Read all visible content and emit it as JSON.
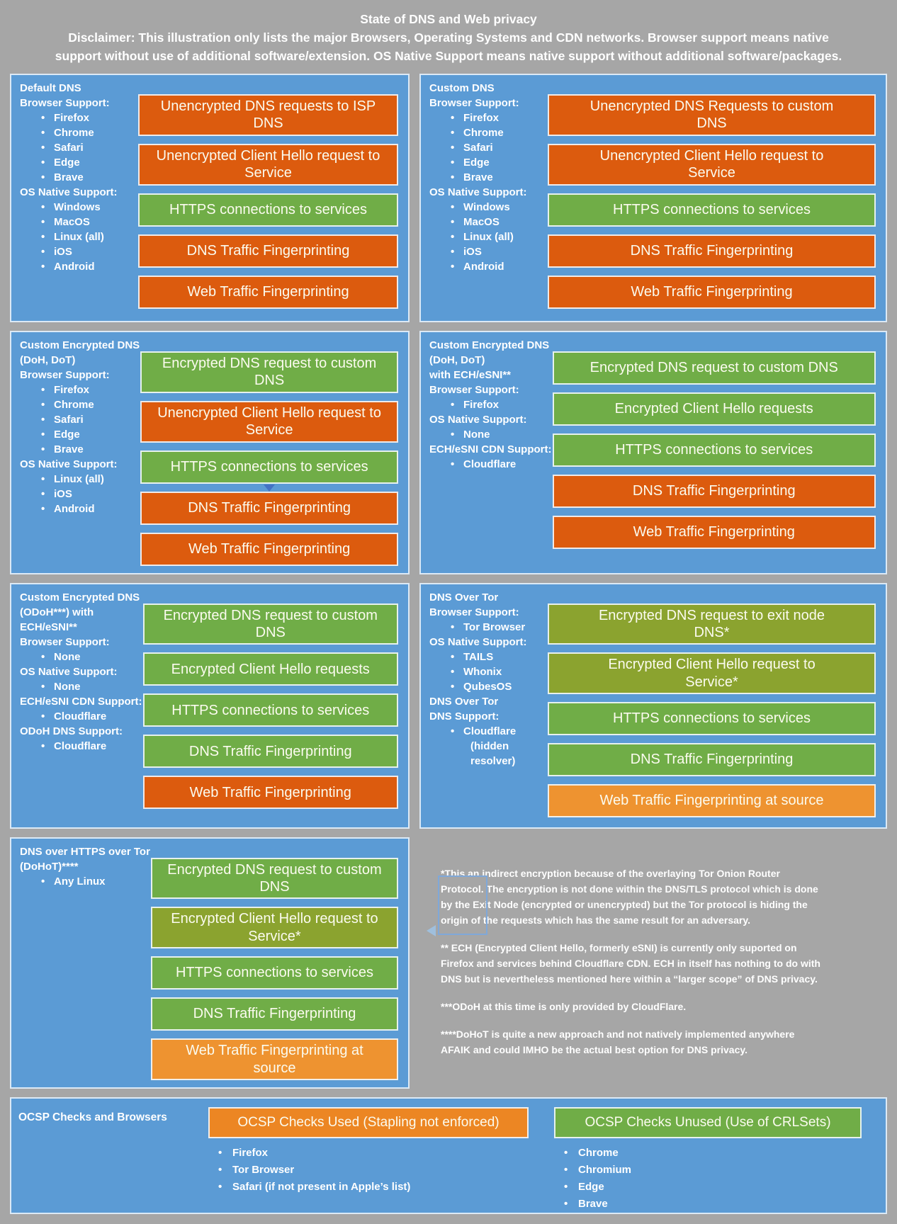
{
  "colors": {
    "gray": "#A6A6A6",
    "blue": "#5B9BD5",
    "orange": "#DC5B0E",
    "green": "#70AD47",
    "olive": "#8BA32F",
    "light_orange": "#EE9330",
    "ocsp_orange": "#EC8623",
    "arrow_blue": "#4472C4"
  },
  "header": {
    "title": "State of DNS and Web privacy",
    "disclaimer": "Disclaimer: This illustration only lists the major Browsers, Operating Systems and CDN networks. Browser support means native support without use of additional software/extension. OS Native Support means native support without additional software/packages."
  },
  "panels": [
    {
      "name": "Default DNS",
      "sidebar": [
        {
          "t": "title",
          "s": "Default DNS"
        },
        {
          "t": "head",
          "s": "Browser Support:"
        },
        {
          "t": "li",
          "s": "Firefox"
        },
        {
          "t": "li",
          "s": "Chrome"
        },
        {
          "t": "li",
          "s": "Safari"
        },
        {
          "t": "li",
          "s": "Edge"
        },
        {
          "t": "li",
          "s": "Brave"
        },
        {
          "t": "head",
          "s": "OS Native Support:"
        },
        {
          "t": "li",
          "s": "Windows"
        },
        {
          "t": "li",
          "s": "MacOS"
        },
        {
          "t": "li",
          "s": "Linux (all)"
        },
        {
          "t": "li",
          "s": "iOS"
        },
        {
          "t": "li",
          "s": "Android"
        }
      ],
      "bars": [
        {
          "label": "Unencrypted DNS requests to ISP DNS",
          "color": "orange"
        },
        {
          "label": "Unencrypted Client Hello request to\nService",
          "color": "orange"
        },
        {
          "label": "HTTPS connections to services",
          "color": "green"
        },
        {
          "label": "DNS Traffic Fingerprinting",
          "color": "orange"
        },
        {
          "label": "Web Traffic Fingerprinting",
          "color": "orange"
        }
      ]
    },
    {
      "name": "Custom DNS",
      "sidebar": [
        {
          "t": "title",
          "s": "Custom DNS"
        },
        {
          "t": "head",
          "s": "Browser Support:"
        },
        {
          "t": "li",
          "s": "Firefox"
        },
        {
          "t": "li",
          "s": "Chrome"
        },
        {
          "t": "li",
          "s": "Safari"
        },
        {
          "t": "li",
          "s": "Edge"
        },
        {
          "t": "li",
          "s": "Brave"
        },
        {
          "t": "head",
          "s": "OS Native Support:"
        },
        {
          "t": "li",
          "s": "Windows"
        },
        {
          "t": "li",
          "s": "MacOS"
        },
        {
          "t": "li",
          "s": "Linux (all)"
        },
        {
          "t": "li",
          "s": "iOS"
        },
        {
          "t": "li",
          "s": "Android"
        }
      ],
      "bars": [
        {
          "label": "Unencrypted DNS Requests to custom\nDNS",
          "color": "orange"
        },
        {
          "label": "Unencrypted Client Hello request to\nService",
          "color": "orange"
        },
        {
          "label": "HTTPS connections to services",
          "color": "green"
        },
        {
          "label": "DNS Traffic Fingerprinting",
          "color": "orange"
        },
        {
          "label": "Web Traffic Fingerprinting",
          "color": "orange"
        }
      ]
    },
    {
      "name": "Custom Encrypted DNS (DoH, DoT)",
      "sidebar": [
        {
          "t": "title",
          "s": "Custom Encrypted DNS"
        },
        {
          "t": "title",
          "s": "(DoH, DoT)"
        },
        {
          "t": "head",
          "s": "Browser Support:"
        },
        {
          "t": "li",
          "s": "Firefox"
        },
        {
          "t": "li",
          "s": "Chrome"
        },
        {
          "t": "li",
          "s": "Safari"
        },
        {
          "t": "li",
          "s": "Edge"
        },
        {
          "t": "li",
          "s": "Brave"
        },
        {
          "t": "head",
          "s": "OS Native Support:"
        },
        {
          "t": "li",
          "s": "Linux (all)"
        },
        {
          "t": "li",
          "s": "iOS"
        },
        {
          "t": "li",
          "s": "Android"
        }
      ],
      "bars": [
        {
          "label": "Encrypted DNS request to custom DNS",
          "color": "green"
        },
        {
          "label": "Unencrypted Client Hello request to\nService",
          "color": "orange"
        },
        {
          "label": "HTTPS connections to services",
          "color": "green",
          "arrow_below": true
        },
        {
          "label": "DNS Traffic Fingerprinting",
          "color": "orange"
        },
        {
          "label": "Web Traffic Fingerprinting",
          "color": "orange"
        }
      ]
    },
    {
      "name": "Custom Encrypted DNS (DoH, DoT) with ECH/eSNI**",
      "sidebar": [
        {
          "t": "title",
          "s": "Custom Encrypted DNS"
        },
        {
          "t": "title",
          "s": "(DoH, DoT)"
        },
        {
          "t": "title",
          "s": "with ECH/eSNI**"
        },
        {
          "t": "head",
          "s": "Browser Support:"
        },
        {
          "t": "li",
          "s": "Firefox"
        },
        {
          "t": "head",
          "s": "OS Native Support:"
        },
        {
          "t": "li",
          "s": "None"
        },
        {
          "t": "head",
          "s": "ECH/eSNI CDN Support:"
        },
        {
          "t": "li",
          "s": "Cloudflare"
        }
      ],
      "bars": [
        {
          "label": "Encrypted DNS request to custom DNS",
          "color": "green"
        },
        {
          "label": "Encrypted Client Hello requests",
          "color": "green"
        },
        {
          "label": "HTTPS connections to services",
          "color": "green"
        },
        {
          "label": "DNS Traffic Fingerprinting",
          "color": "orange"
        },
        {
          "label": "Web Traffic Fingerprinting",
          "color": "orange"
        }
      ]
    },
    {
      "name": "Custom Encrypted DNS (ODoH***) with ECH/eSNI**",
      "sidebar": [
        {
          "t": "title",
          "s": "Custom Encrypted DNS"
        },
        {
          "t": "title",
          "s": "(ODoH***) with"
        },
        {
          "t": "title",
          "s": "ECH/eSNI**"
        },
        {
          "t": "head",
          "s": "Browser Support:"
        },
        {
          "t": "li",
          "s": "None"
        },
        {
          "t": "head",
          "s": "OS Native Support:"
        },
        {
          "t": "li",
          "s": "None"
        },
        {
          "t": "head",
          "s": "ECH/eSNI CDN Support:"
        },
        {
          "t": "li",
          "s": "Cloudflare"
        },
        {
          "t": "head",
          "s": "ODoH DNS Support:"
        },
        {
          "t": "li",
          "s": "Cloudflare"
        }
      ],
      "bars": [
        {
          "label": "Encrypted DNS request to custom DNS",
          "color": "green"
        },
        {
          "label": "Encrypted Client Hello requests",
          "color": "green"
        },
        {
          "label": "HTTPS connections to services",
          "color": "green"
        },
        {
          "label": "DNS Traffic Fingerprinting",
          "color": "green"
        },
        {
          "label": "Web Traffic Fingerprinting",
          "color": "orange"
        }
      ]
    },
    {
      "name": "DNS Over Tor",
      "sidebar": [
        {
          "t": "title",
          "s": "DNS Over Tor"
        },
        {
          "t": "head",
          "s": "Browser Support:"
        },
        {
          "t": "li",
          "s": "Tor Browser"
        },
        {
          "t": "head",
          "s": "OS Native Support:"
        },
        {
          "t": "li",
          "s": "TAILS"
        },
        {
          "t": "li",
          "s": "Whonix"
        },
        {
          "t": "li",
          "s": "QubesOS"
        },
        {
          "t": "head",
          "s": "DNS Over Tor"
        },
        {
          "t": "head",
          "s": "DNS Support:"
        },
        {
          "t": "li",
          "s": "Cloudflare"
        },
        {
          "t": "cont",
          "s": "(hidden resolver)"
        }
      ],
      "bars": [
        {
          "label": "Encrypted DNS request to exit node\nDNS*",
          "color": "olive"
        },
        {
          "label": "Encrypted Client Hello request to\nService*",
          "color": "olive"
        },
        {
          "label": "HTTPS connections to services",
          "color": "green"
        },
        {
          "label": "DNS Traffic Fingerprinting",
          "color": "green"
        },
        {
          "label": "Web Traffic Fingerprinting at source",
          "color": "light_orange"
        }
      ]
    },
    {
      "name": "DNS over HTTPS over Tor (DoHoT)****",
      "sidebar": [
        {
          "t": "title",
          "s": "DNS over HTTPS over Tor"
        },
        {
          "t": "title",
          "s": "(DoHoT)****"
        },
        {
          "t": "li",
          "s": "Any Linux"
        }
      ],
      "bars": [
        {
          "label": "Encrypted DNS request to custom DNS",
          "color": "green"
        },
        {
          "label": "Encrypted Client Hello request to\nService*",
          "color": "olive"
        },
        {
          "label": "HTTPS connections to services",
          "color": "green"
        },
        {
          "label": "DNS Traffic Fingerprinting",
          "color": "green"
        },
        {
          "label": "Web Traffic Fingerprinting at source",
          "color": "light_orange"
        }
      ]
    }
  ],
  "footnotes": [
    "*This an indirect encryption because of the overlaying Tor Onion Router Protocol. The encryption is not done within the DNS/TLS protocol which is done by the Exit Node (encrypted or unencrypted) but the Tor protocol is hiding the origin of the requests which has the same result for an adversary.",
    "** ECH (Encrypted Client Hello, formerly eSNI) is currently only suported on Firefox and services behind Cloudflare CDN. ECH in itself has nothing to do with DNS but is nevertheless mentioned here within a “larger scope” of DNS privacy.",
    "***ODoH at this time is only provided by CloudFlare.",
    "****DoHoT is quite a new approach and not natively implemented anywhere AFAIK and could IMHO be the actual best option for DNS privacy."
  ],
  "ocsp": {
    "label": "OCSP Checks and Browsers",
    "groups": [
      {
        "header": "OCSP Checks Used (Stapling not enforced)",
        "color": "ocsp_orange",
        "bullets": [
          "Firefox",
          "Tor Browser",
          "Safari (if not present in Apple’s list)"
        ]
      },
      {
        "header": "OCSP Checks Unused (Use of CRLSets)",
        "color": "green",
        "bullets": [
          "Chrome",
          "Chromium",
          "Edge",
          "Brave"
        ]
      }
    ]
  }
}
